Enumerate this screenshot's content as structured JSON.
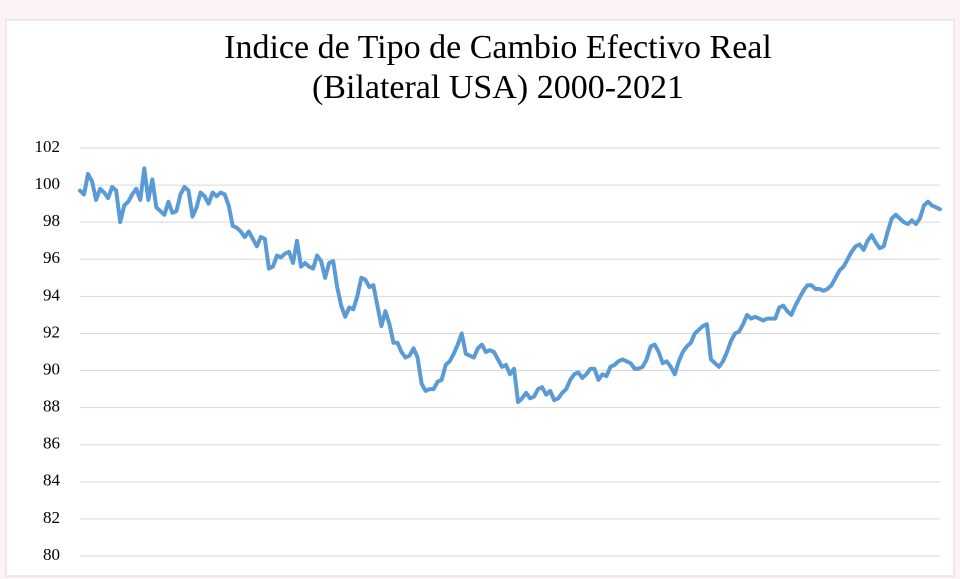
{
  "chart_data": {
    "type": "line",
    "title": [
      "Indice de Tipo de Cambio Efectivo Real",
      "(Bilateral USA) 2000-2021"
    ],
    "series": [
      {
        "color": "#5b9bd5",
        "values": [
          99.7,
          99.5,
          100.6,
          100.2,
          99.2,
          99.8,
          99.6,
          99.3,
          99.9,
          99.7,
          98.0,
          98.9,
          99.1,
          99.5,
          99.8,
          99.2,
          100.9,
          99.2,
          100.3,
          98.8,
          98.6,
          98.4,
          99.1,
          98.5,
          98.6,
          99.5,
          99.9,
          99.7,
          98.3,
          98.8,
          99.6,
          99.4,
          99.0,
          99.6,
          99.4,
          99.6,
          99.5,
          98.9,
          97.8,
          97.7,
          97.5,
          97.2,
          97.5,
          97.1,
          96.7,
          97.2,
          97.1,
          95.5,
          95.6,
          96.2,
          96.1,
          96.3,
          96.4,
          95.8,
          97.0,
          95.6,
          95.8,
          95.6,
          95.5,
          96.2,
          95.9,
          95.0,
          95.8,
          95.9,
          94.5,
          93.5,
          92.9,
          93.4,
          93.3,
          94.0,
          95.0,
          94.9,
          94.5,
          94.6,
          93.5,
          92.4,
          93.2,
          92.5,
          91.5,
          91.5,
          91.0,
          90.7,
          90.8,
          91.2,
          90.7,
          89.3,
          88.9,
          89.0,
          89.0,
          89.4,
          89.5,
          90.3,
          90.5,
          90.9,
          91.4,
          92.0,
          90.9,
          90.8,
          90.7,
          91.2,
          91.4,
          91.0,
          91.1,
          91.0,
          90.6,
          90.2,
          90.3,
          89.8,
          90.1,
          88.3,
          88.5,
          88.8,
          88.5,
          88.6,
          89.0,
          89.1,
          88.7,
          88.9,
          88.4,
          88.5,
          88.8,
          89.0,
          89.5,
          89.8,
          89.9,
          89.6,
          89.8,
          90.1,
          90.1,
          89.5,
          89.8,
          89.7,
          90.2,
          90.3,
          90.5,
          90.6,
          90.5,
          90.4,
          90.1,
          90.1,
          90.2,
          90.6,
          91.3,
          91.4,
          91.0,
          90.4,
          90.5,
          90.2,
          89.8,
          90.5,
          91.0,
          91.3,
          91.5,
          92.0,
          92.2,
          92.4,
          92.5,
          90.6,
          90.4,
          90.2,
          90.5,
          91.0,
          91.6,
          92.0,
          92.1,
          92.5,
          93.0,
          92.8,
          92.9,
          92.8,
          92.7,
          92.8,
          92.8,
          92.8,
          93.4,
          93.5,
          93.2,
          93.0,
          93.5,
          93.9,
          94.3,
          94.6,
          94.6,
          94.4,
          94.4,
          94.3,
          94.4,
          94.6,
          95.0,
          95.4,
          95.6,
          96.0,
          96.4,
          96.7,
          96.8,
          96.5,
          97.0,
          97.3,
          96.9,
          96.6,
          96.7,
          97.5,
          98.2,
          98.4,
          98.2,
          98.0,
          97.9,
          98.1,
          97.9,
          98.2,
          98.9,
          99.1,
          98.9,
          98.8,
          98.7
        ]
      }
    ],
    "ylim": [
      80,
      102
    ],
    "yticks": [
      80,
      82,
      84,
      86,
      88,
      90,
      92,
      94,
      96,
      98,
      100,
      102
    ],
    "grid": true
  }
}
